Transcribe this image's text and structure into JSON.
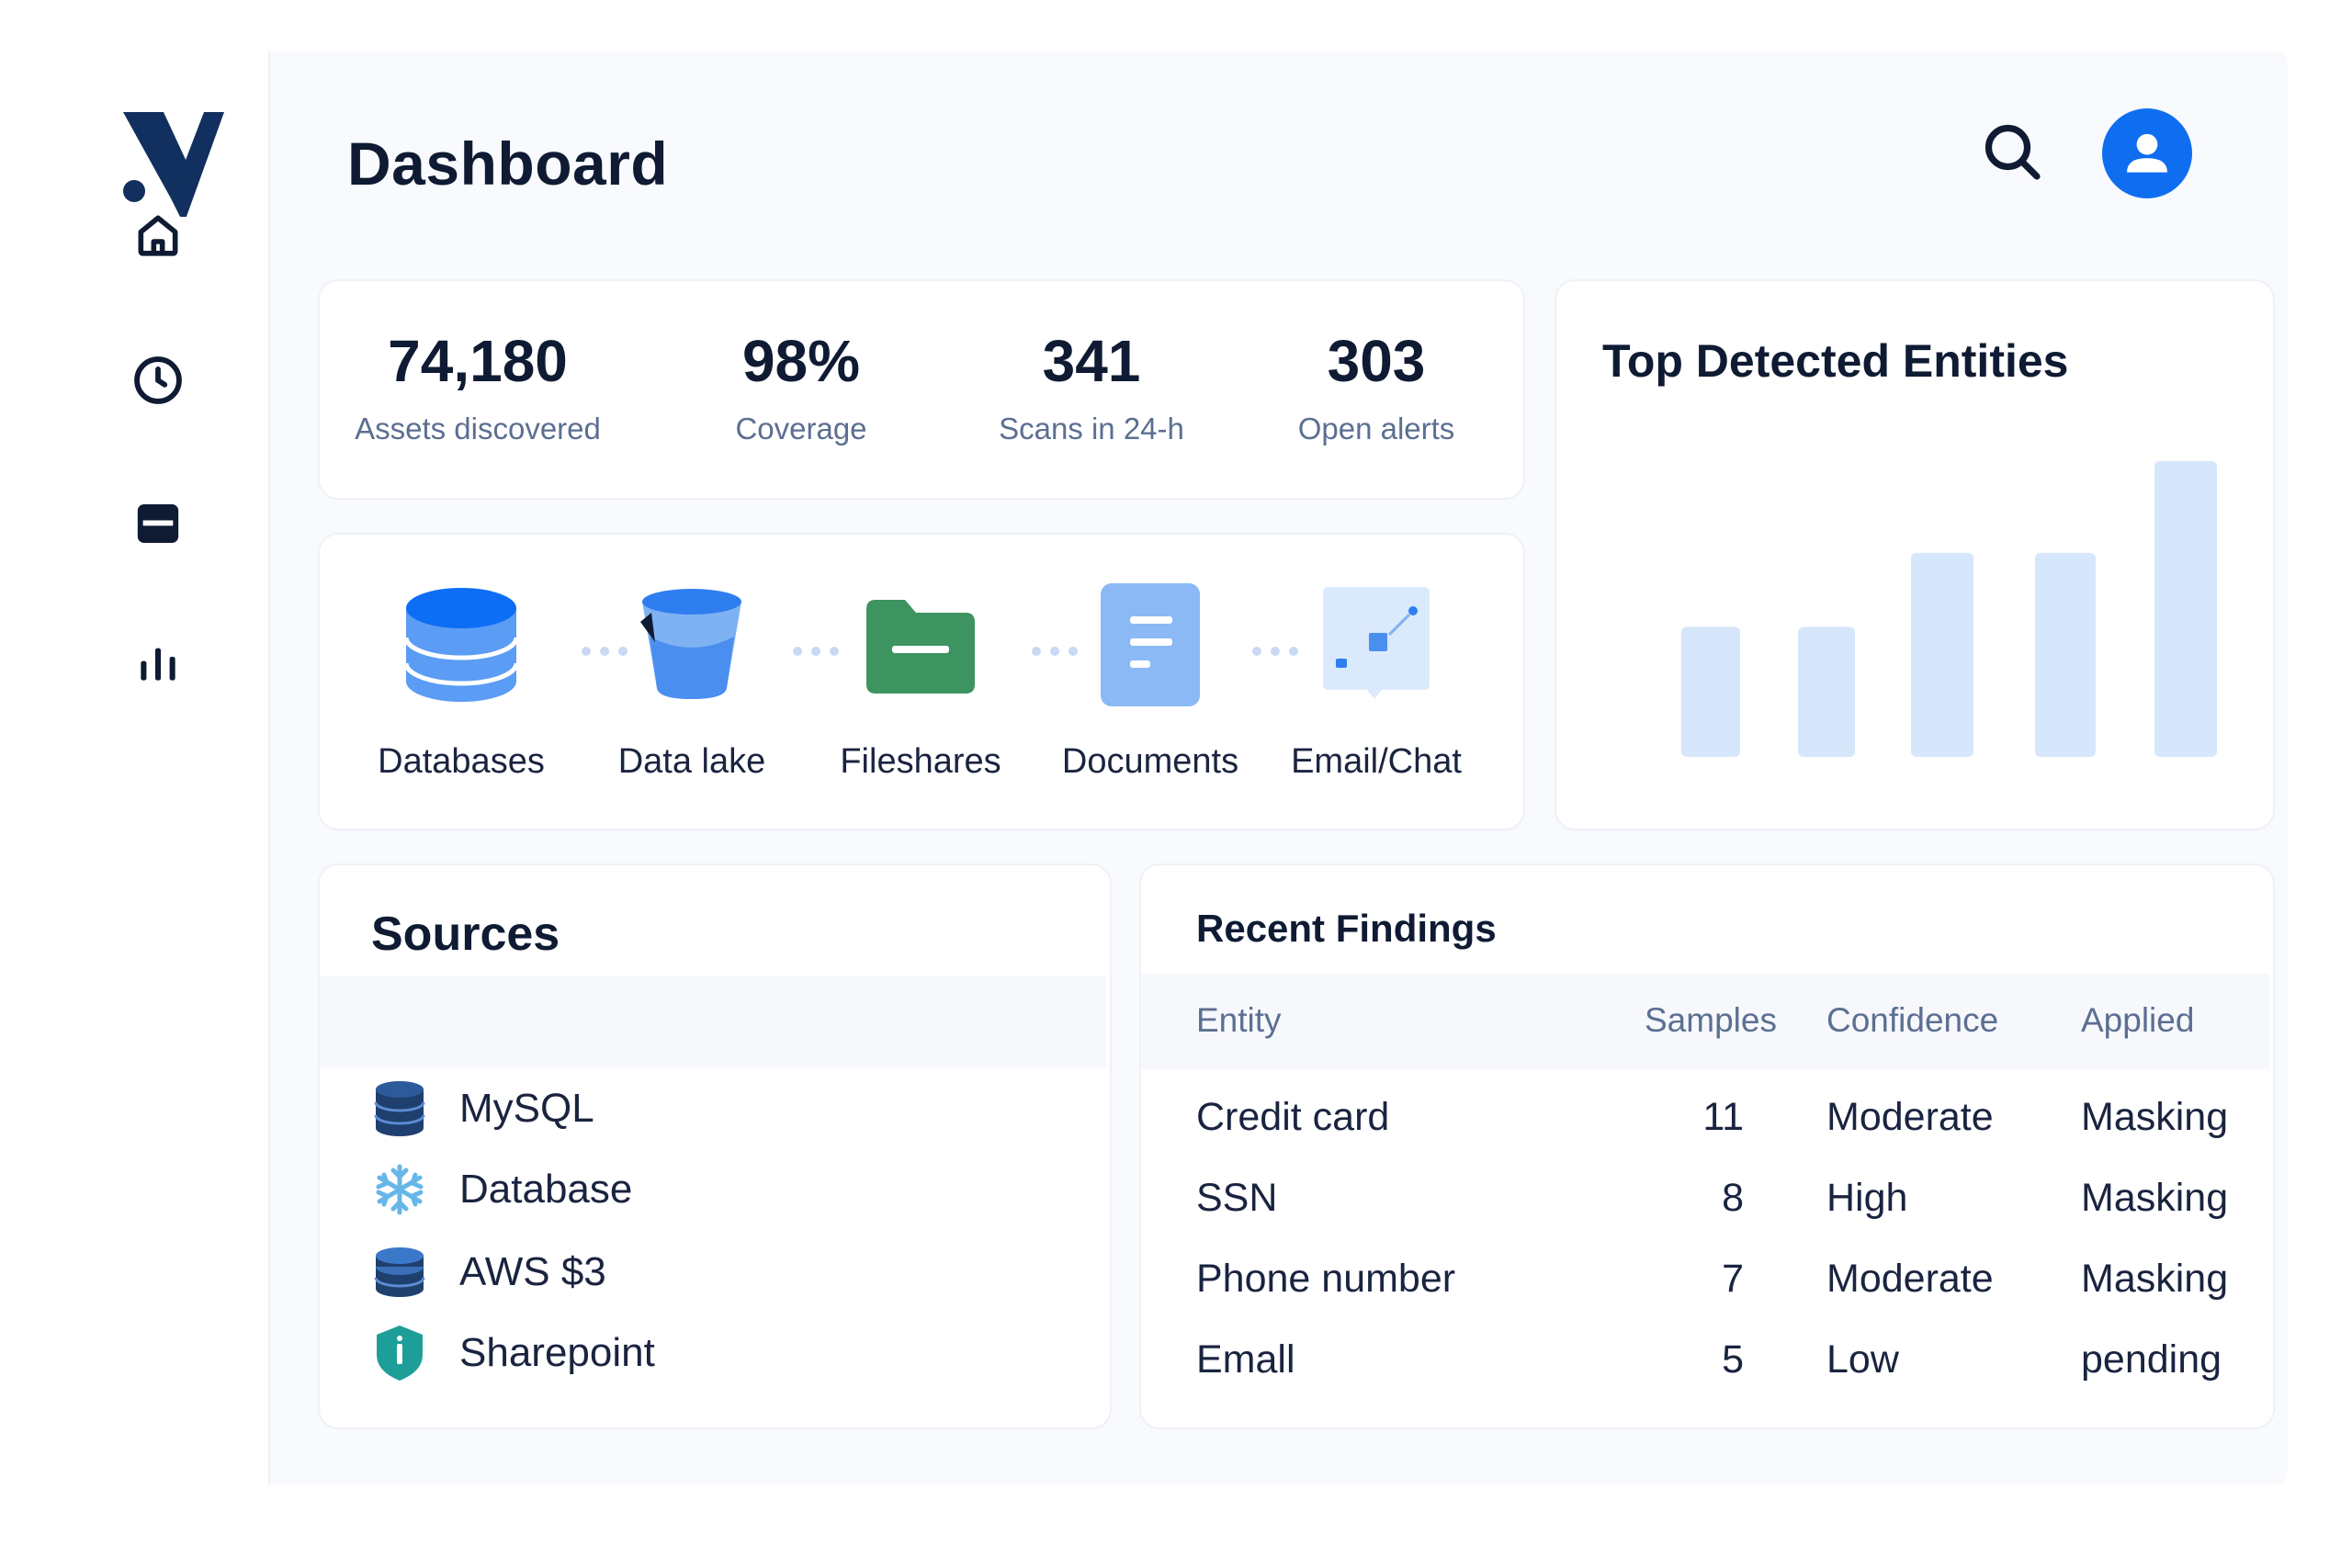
{
  "header": {
    "title": "Dashboard"
  },
  "sidebar": {
    "items": [
      {
        "name": "home",
        "icon": "home-icon"
      },
      {
        "name": "history",
        "icon": "clock-icon"
      },
      {
        "name": "storage",
        "icon": "card-icon"
      },
      {
        "name": "analytics",
        "icon": "bar-chart-icon"
      }
    ]
  },
  "stats": [
    {
      "value": "74,180",
      "label": "Assets discovered"
    },
    {
      "value": "98%",
      "label": "Coverage"
    },
    {
      "value": "341",
      "label": "Scans in 24-h"
    },
    {
      "value": "303",
      "label": "Open alerts"
    }
  ],
  "data_types": [
    {
      "label": "Databases",
      "icon": "database-icon"
    },
    {
      "label": "Data lake",
      "icon": "bucket-icon"
    },
    {
      "label": "Fileshares",
      "icon": "folder-icon"
    },
    {
      "label": "Documents",
      "icon": "document-icon"
    },
    {
      "label": "Email/Chat",
      "icon": "chat-icon"
    }
  ],
  "chart": {
    "title": "Top Detected Entities"
  },
  "chart_data": {
    "type": "bar",
    "title": "Top Detected Entities",
    "values": [
      44,
      44,
      69,
      69,
      100
    ],
    "ylim": [
      0,
      100
    ],
    "grid": false,
    "color": "#d6e6fb"
  },
  "sources": {
    "title": "Sources",
    "items": [
      {
        "label": "MySQL",
        "icon": "mysql-database-icon"
      },
      {
        "label": "Database",
        "icon": "snowflake-icon"
      },
      {
        "label": "AWS $3",
        "icon": "aws-s3-icon"
      },
      {
        "label": "Sharepoint",
        "icon": "sharepoint-shield-icon"
      }
    ]
  },
  "findings": {
    "title": "Recent Findings",
    "columns": [
      "Entity",
      "Samples",
      "Confidence",
      "Applied"
    ],
    "rows": [
      {
        "entity": "Credit card",
        "samples": "11",
        "confidence": "Moderate",
        "applied": "Masking"
      },
      {
        "entity": "SSN",
        "samples": "8",
        "confidence": "High",
        "applied": "Masking"
      },
      {
        "entity": "Phone number",
        "samples": "7",
        "confidence": "Moderate",
        "applied": "Masking"
      },
      {
        "entity": "Emall",
        "samples": "5",
        "confidence": "Low",
        "applied": "pending"
      }
    ]
  },
  "colors": {
    "accent": "#0f6ef0",
    "navy": "#0f1b33",
    "muted": "#5c6f91",
    "bar": "#d6e6fb"
  }
}
